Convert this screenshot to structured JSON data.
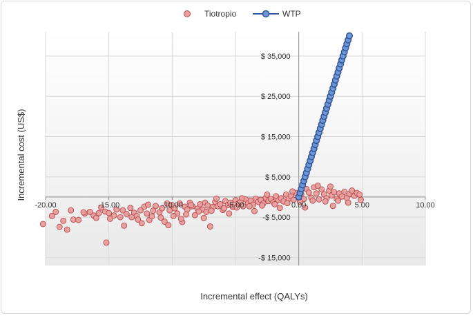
{
  "chart_data": {
    "type": "scatter",
    "title": "",
    "xlabel": "Incremental effect (QALYs)",
    "ylabel": "Incremental cost (US$)",
    "xlim": [
      -20,
      10
    ],
    "ylim": [
      -17000,
      41000
    ],
    "x_ticks": [
      {
        "value": -20,
        "label": "-20.00"
      },
      {
        "value": -15,
        "label": "-15.00"
      },
      {
        "value": -10,
        "label": "-10.00"
      },
      {
        "value": -5,
        "label": "-5.00"
      },
      {
        "value": 0,
        "label": "0.00"
      },
      {
        "value": 5,
        "label": "5.00"
      },
      {
        "value": 10,
        "label": "10.00"
      }
    ],
    "y_ticks": [
      {
        "value": 35000,
        "label": "$ 35,000"
      },
      {
        "value": 25000,
        "label": "$ 25,000"
      },
      {
        "value": 15000,
        "label": "$ 15,000"
      },
      {
        "value": 5000,
        "label": "$ 5,000"
      },
      {
        "value": -5000,
        "label": "-$ 5,000"
      },
      {
        "value": -15000,
        "label": "-$ 15,000"
      }
    ],
    "grid": true,
    "legend": "top-center",
    "series": [
      {
        "name": "Tiotropio",
        "marker": "circle",
        "color": "#e8a0a0",
        "edge_color": "#b84a4a",
        "points": [
          [
            -20.2,
            -6700
          ],
          [
            -19.5,
            -4700
          ],
          [
            -19.2,
            -3700
          ],
          [
            -18.9,
            -7400
          ],
          [
            -18.6,
            -5900
          ],
          [
            -18.3,
            -8100
          ],
          [
            -18.0,
            -3300
          ],
          [
            -17.8,
            -5600
          ],
          [
            -17.4,
            -5700
          ],
          [
            -16.9,
            -4100
          ],
          [
            -16.5,
            -3700
          ],
          [
            -16.2,
            -4600
          ],
          [
            -15.8,
            -4000
          ],
          [
            -15.6,
            -2600
          ],
          [
            -15.3,
            -3600
          ],
          [
            -15.0,
            -4000
          ],
          [
            -15.2,
            -11300
          ],
          [
            -14.6,
            -4600
          ],
          [
            -14.4,
            -3100
          ],
          [
            -14.1,
            -5000
          ],
          [
            -13.9,
            -3300
          ],
          [
            -13.6,
            -4200
          ],
          [
            -13.3,
            -2700
          ],
          [
            -13.0,
            -3900
          ],
          [
            -12.8,
            -4700
          ],
          [
            -12.5,
            -3300
          ],
          [
            -12.2,
            -2400
          ],
          [
            -12.0,
            -4100
          ],
          [
            -11.8,
            -5700
          ],
          [
            -11.5,
            -3400
          ],
          [
            -11.3,
            -2200
          ],
          [
            -11.0,
            -3800
          ],
          [
            -10.8,
            -2800
          ],
          [
            -10.6,
            -6100
          ],
          [
            -10.4,
            -1600
          ],
          [
            -10.2,
            -3300
          ],
          [
            -10.0,
            -2000
          ],
          [
            -9.8,
            -2800
          ],
          [
            -9.6,
            -4100
          ],
          [
            -9.4,
            -1600
          ],
          [
            -9.2,
            -6200
          ],
          [
            -9.0,
            -2400
          ],
          [
            -8.8,
            -3100
          ],
          [
            -8.6,
            -1400
          ],
          [
            -8.4,
            -2300
          ],
          [
            -8.2,
            -4500
          ],
          [
            -8.0,
            -2900
          ],
          [
            -7.8,
            -1800
          ],
          [
            -7.6,
            -3100
          ],
          [
            -7.4,
            -1400
          ],
          [
            -7.2,
            -2100
          ],
          [
            -7.0,
            -7300
          ],
          [
            -7.3,
            -3700
          ],
          [
            -6.8,
            -2500
          ],
          [
            -6.6,
            -1200
          ],
          [
            -6.4,
            -2300
          ],
          [
            -6.2,
            -1800
          ],
          [
            -6.0,
            -3200
          ],
          [
            -5.8,
            -1000
          ],
          [
            -5.6,
            -2000
          ],
          [
            -5.4,
            -1400
          ],
          [
            -5.2,
            -2500
          ],
          [
            -5.0,
            -800
          ],
          [
            -4.8,
            -1700
          ],
          [
            -4.6,
            -1200
          ],
          [
            -4.4,
            -2300
          ],
          [
            -4.2,
            -600
          ],
          [
            -4.0,
            -1500
          ],
          [
            -3.8,
            -900
          ],
          [
            -3.6,
            -1900
          ],
          [
            -3.4,
            -400
          ],
          [
            -3.2,
            -1200
          ],
          [
            -3.0,
            -700
          ],
          [
            -2.8,
            -1600
          ],
          [
            -2.6,
            -200
          ],
          [
            -2.4,
            -1000
          ],
          [
            -2.2,
            -500
          ],
          [
            -2.0,
            -1300
          ],
          [
            -1.8,
            200
          ],
          [
            -1.6,
            -800
          ],
          [
            -1.4,
            -300
          ],
          [
            -1.2,
            -1100
          ],
          [
            -1.0,
            600
          ],
          [
            -0.8,
            -400
          ],
          [
            -0.6,
            200
          ],
          [
            -0.4,
            -700
          ],
          [
            -0.2,
            1000
          ],
          [
            0.0,
            -200
          ],
          [
            0.2,
            700
          ],
          [
            0.4,
            -500
          ],
          [
            0.6,
            2000
          ],
          [
            0.8,
            1100
          ],
          [
            1.0,
            -200
          ],
          [
            1.2,
            2400
          ],
          [
            1.4,
            900
          ],
          [
            1.6,
            -600
          ],
          [
            1.8,
            1900
          ],
          [
            2.0,
            700
          ],
          [
            2.2,
            -300
          ],
          [
            2.4,
            1600
          ],
          [
            2.6,
            400
          ],
          [
            2.8,
            1200
          ],
          [
            3.0,
            -500
          ],
          [
            3.2,
            900
          ],
          [
            3.4,
            100
          ],
          [
            3.6,
            1300
          ],
          [
            3.8,
            -200
          ],
          [
            4.0,
            800
          ],
          [
            4.2,
            1600
          ],
          [
            4.4,
            300
          ],
          [
            4.6,
            1000
          ],
          [
            4.8,
            600
          ],
          [
            -17.0,
            -3800
          ],
          [
            -16.0,
            -5200
          ],
          [
            -14.9,
            -5400
          ],
          [
            -13.8,
            -7100
          ],
          [
            -12.7,
            -5600
          ],
          [
            -11.6,
            -4800
          ],
          [
            -10.9,
            -5100
          ],
          [
            -9.9,
            -4700
          ],
          [
            -8.9,
            -4300
          ],
          [
            -7.9,
            -3600
          ],
          [
            -6.9,
            -3400
          ],
          [
            -5.9,
            -2800
          ],
          [
            -4.9,
            -2600
          ],
          [
            -3.9,
            -2300
          ],
          [
            -2.9,
            -2100
          ],
          [
            -1.9,
            -1800
          ],
          [
            -0.9,
            -1500
          ],
          [
            0.1,
            -1200
          ],
          [
            1.1,
            -900
          ],
          [
            2.1,
            -1100
          ],
          [
            3.1,
            -900
          ],
          [
            -12.4,
            -6500
          ],
          [
            -10.3,
            -7000
          ],
          [
            -8.5,
            -2000
          ],
          [
            -6.5,
            -400
          ],
          [
            -4.5,
            -300
          ],
          [
            -2.5,
            600
          ],
          [
            -0.5,
            1400
          ],
          [
            1.5,
            2800
          ],
          [
            2.5,
            2600
          ],
          [
            0.3,
            2900
          ],
          [
            -11.9,
            -1900
          ],
          [
            -13.2,
            -5000
          ],
          [
            -9.3,
            -5400
          ],
          [
            -7.5,
            -5200
          ],
          [
            -5.5,
            -4100
          ],
          [
            -3.5,
            -3500
          ],
          [
            -1.5,
            -2700
          ],
          [
            0.5,
            -2600
          ],
          [
            2.7,
            -2200
          ],
          [
            3.9,
            -1400
          ],
          [
            4.9,
            -700
          ]
        ]
      },
      {
        "name": "WTP",
        "marker": "circle-line",
        "color": "#6f96d6",
        "edge_color": "#2f5597",
        "x": [
          0.0,
          0.1,
          0.2,
          0.3,
          0.4,
          0.5,
          0.6,
          0.7,
          0.8,
          0.9,
          1.0,
          1.1,
          1.2,
          1.3,
          1.4,
          1.5,
          1.6,
          1.7,
          1.8,
          1.9,
          2.0,
          2.1,
          2.2,
          2.3,
          2.4,
          2.5,
          2.6,
          2.7,
          2.8,
          2.9,
          3.0,
          3.1,
          3.2,
          3.3,
          3.4,
          3.5,
          3.6,
          3.7,
          3.8,
          3.9,
          4.0
        ],
        "y": [
          0,
          1000,
          2000,
          3000,
          4000,
          5000,
          6000,
          7000,
          8000,
          9000,
          10000,
          11000,
          12000,
          13000,
          14000,
          15000,
          16000,
          17000,
          18000,
          19000,
          20000,
          21000,
          22000,
          23000,
          24000,
          25000,
          26000,
          27000,
          28000,
          29000,
          30000,
          31000,
          32000,
          33000,
          34000,
          35000,
          36000,
          37000,
          38000,
          39000,
          40000
        ]
      }
    ]
  }
}
